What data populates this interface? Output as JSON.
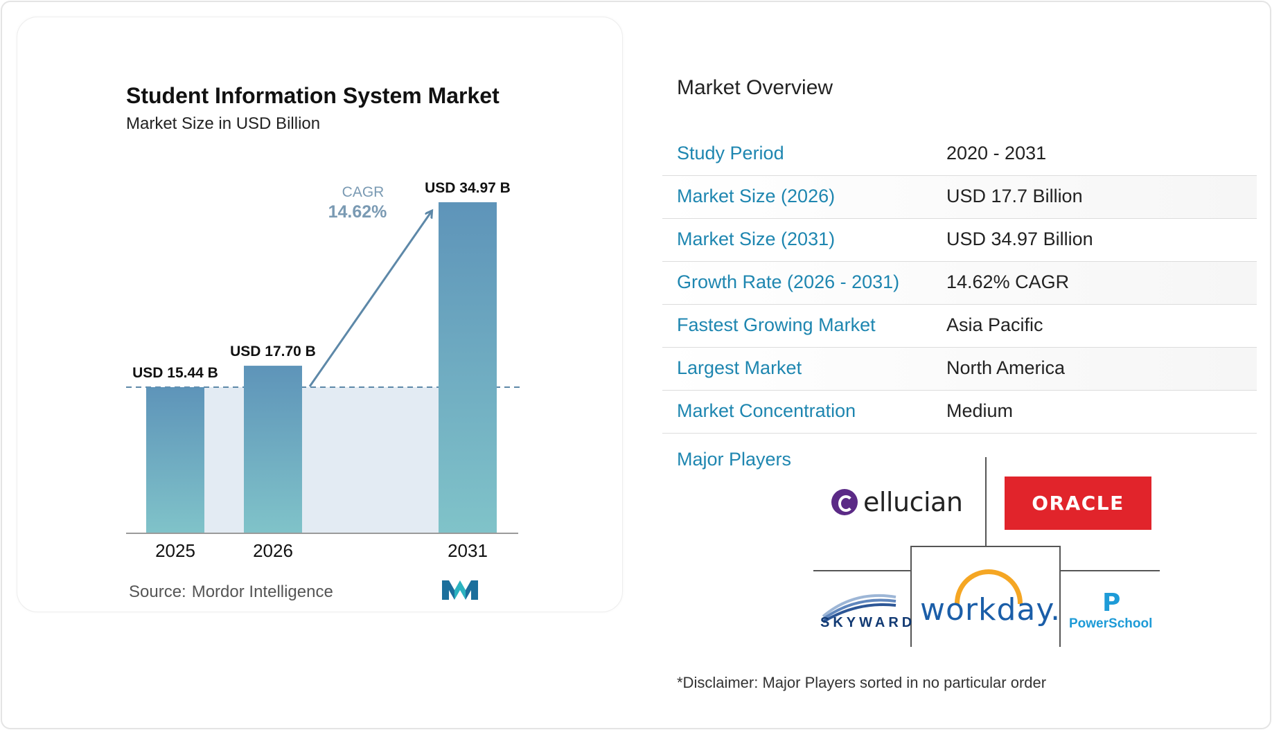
{
  "chart_data": {
    "type": "bar",
    "title": "Student Information System Market",
    "subtitle": "Market Size in USD Billion",
    "categories": [
      "2025",
      "2026",
      "2031"
    ],
    "values": [
      15.44,
      17.7,
      34.97
    ],
    "data_labels": [
      "USD 15.44 B",
      "USD 17.70 B",
      "USD 34.97 B"
    ],
    "cagr_label": "CAGR",
    "cagr_value": "14.62%",
    "ylim": [
      0,
      40
    ],
    "bar_colors": [
      "#5e94b9",
      "#80c3c9"
    ],
    "grid": false
  },
  "source": {
    "label": "Source:",
    "name": "Mordor Intelligence"
  },
  "overview": {
    "title": "Market Overview",
    "rows": [
      {
        "label": "Study Period",
        "value": "2020 - 2031"
      },
      {
        "label": "Market Size (2026)",
        "value": "USD 17.7 Billion"
      },
      {
        "label": "Market Size (2031)",
        "value": "USD 34.97 Billion"
      },
      {
        "label": "Growth Rate (2026 - 2031)",
        "value": "14.62% CAGR"
      },
      {
        "label": "Fastest Growing Market",
        "value": "Asia Pacific"
      },
      {
        "label": "Largest Market",
        "value": "North America"
      },
      {
        "label": "Market Concentration",
        "value": "Medium"
      }
    ],
    "major_players_label": "Major Players",
    "players": [
      "ellucian",
      "ORACLE",
      "workday.",
      "SKYWARD",
      "PowerSchool"
    ],
    "disclaimer": "*Disclaimer: Major Players sorted in no particular order"
  },
  "colors": {
    "accent": "#1e86b0",
    "cagr_text": "#7a9ab3",
    "arrow": "#5d88a8"
  }
}
